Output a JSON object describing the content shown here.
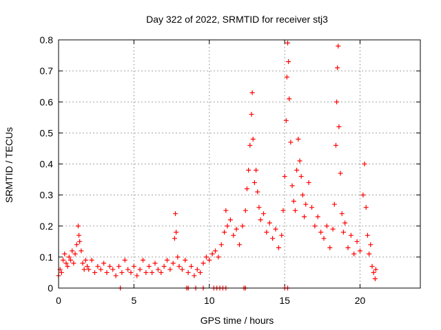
{
  "chart_data": {
    "type": "scatter",
    "title": "Day 322 of 2022, SRMTID for receiver stj3",
    "xlabel": "GPS time / hours",
    "ylabel": "SRMTID / TECUs",
    "xlim": [
      0,
      24
    ],
    "ylim": [
      0,
      0.8
    ],
    "xticks": [
      0,
      5,
      10,
      15,
      20
    ],
    "yticks": [
      0,
      0.1,
      0.2,
      0.3,
      0.4,
      0.5,
      0.6,
      0.7,
      0.8
    ],
    "xtick_labels": [
      "0",
      "5",
      "10",
      "15",
      "20"
    ],
    "ytick_labels": [
      "0",
      "0.1",
      "0.2",
      "0.3",
      "0.4",
      "0.5",
      "0.6",
      "0.7",
      "0.8"
    ],
    "grid": true,
    "marker": "+",
    "series_color": "#ff0000",
    "series": [
      {
        "name": "SRMTID",
        "points": [
          [
            0.0,
            0.04
          ],
          [
            0.1,
            0.06
          ],
          [
            0.2,
            0.05
          ],
          [
            0.3,
            0.09
          ],
          [
            0.4,
            0.11
          ],
          [
            0.5,
            0.08
          ],
          [
            0.6,
            0.07
          ],
          [
            0.7,
            0.1
          ],
          [
            0.8,
            0.09
          ],
          [
            0.9,
            0.12
          ],
          [
            1.0,
            0.08
          ],
          [
            1.1,
            0.11
          ],
          [
            1.2,
            0.14
          ],
          [
            1.3,
            0.2
          ],
          [
            1.35,
            0.17
          ],
          [
            1.4,
            0.15
          ],
          [
            1.5,
            0.12
          ],
          [
            1.6,
            0.08
          ],
          [
            1.7,
            0.06
          ],
          [
            1.8,
            0.09
          ],
          [
            1.9,
            0.07
          ],
          [
            2.0,
            0.06
          ],
          [
            2.2,
            0.09
          ],
          [
            2.4,
            0.05
          ],
          [
            2.6,
            0.07
          ],
          [
            2.8,
            0.06
          ],
          [
            3.0,
            0.08
          ],
          [
            3.2,
            0.05
          ],
          [
            3.4,
            0.07
          ],
          [
            3.6,
            0.06
          ],
          [
            3.8,
            0.04
          ],
          [
            4.0,
            0.07
          ],
          [
            4.2,
            0.05
          ],
          [
            4.4,
            0.09
          ],
          [
            4.6,
            0.06
          ],
          [
            4.8,
            0.05
          ],
          [
            5.0,
            0.07
          ],
          [
            5.2,
            0.04
          ],
          [
            5.4,
            0.06
          ],
          [
            5.6,
            0.09
          ],
          [
            5.8,
            0.05
          ],
          [
            6.0,
            0.07
          ],
          [
            6.2,
            0.05
          ],
          [
            6.4,
            0.08
          ],
          [
            6.6,
            0.06
          ],
          [
            6.8,
            0.05
          ],
          [
            7.0,
            0.07
          ],
          [
            7.2,
            0.09
          ],
          [
            7.4,
            0.06
          ],
          [
            7.6,
            0.08
          ],
          [
            7.7,
            0.16
          ],
          [
            7.75,
            0.24
          ],
          [
            7.8,
            0.18
          ],
          [
            7.9,
            0.1
          ],
          [
            8.0,
            0.07
          ],
          [
            8.2,
            0.06
          ],
          [
            8.4,
            0.09
          ],
          [
            8.6,
            0.05
          ],
          [
            8.8,
            0.07
          ],
          [
            9.0,
            0.04
          ],
          [
            9.2,
            0.06
          ],
          [
            9.4,
            0.05
          ],
          [
            9.6,
            0.08
          ],
          [
            9.8,
            0.1
          ],
          [
            10.0,
            0.09
          ],
          [
            10.2,
            0.11
          ],
          [
            10.4,
            0.12
          ],
          [
            10.6,
            0.1
          ],
          [
            10.8,
            0.14
          ],
          [
            11.0,
            0.18
          ],
          [
            11.1,
            0.25
          ],
          [
            11.2,
            0.2
          ],
          [
            11.4,
            0.22
          ],
          [
            11.6,
            0.17
          ],
          [
            11.8,
            0.19
          ],
          [
            12.0,
            0.14
          ],
          [
            12.2,
            0.2
          ],
          [
            12.4,
            0.25
          ],
          [
            12.5,
            0.32
          ],
          [
            12.6,
            0.38
          ],
          [
            12.7,
            0.46
          ],
          [
            12.8,
            0.56
          ],
          [
            12.85,
            0.63
          ],
          [
            12.9,
            0.48
          ],
          [
            13.0,
            0.34
          ],
          [
            13.1,
            0.38
          ],
          [
            13.2,
            0.31
          ],
          [
            13.3,
            0.26
          ],
          [
            13.4,
            0.22
          ],
          [
            13.6,
            0.24
          ],
          [
            13.8,
            0.18
          ],
          [
            14.0,
            0.21
          ],
          [
            14.2,
            0.16
          ],
          [
            14.4,
            0.19
          ],
          [
            14.6,
            0.13
          ],
          [
            14.8,
            0.17
          ],
          [
            14.9,
            0.25
          ],
          [
            15.0,
            0.36
          ],
          [
            15.1,
            0.54
          ],
          [
            15.15,
            0.68
          ],
          [
            15.2,
            0.79
          ],
          [
            15.25,
            0.73
          ],
          [
            15.3,
            0.61
          ],
          [
            15.4,
            0.47
          ],
          [
            15.5,
            0.33
          ],
          [
            15.6,
            0.28
          ],
          [
            15.7,
            0.25
          ],
          [
            15.8,
            0.38
          ],
          [
            15.9,
            0.48
          ],
          [
            16.0,
            0.41
          ],
          [
            16.1,
            0.36
          ],
          [
            16.2,
            0.3
          ],
          [
            16.3,
            0.23
          ],
          [
            16.4,
            0.27
          ],
          [
            16.6,
            0.34
          ],
          [
            16.8,
            0.26
          ],
          [
            17.0,
            0.2
          ],
          [
            17.2,
            0.23
          ],
          [
            17.4,
            0.18
          ],
          [
            17.6,
            0.16
          ],
          [
            17.8,
            0.2
          ],
          [
            18.0,
            0.13
          ],
          [
            18.2,
            0.19
          ],
          [
            18.3,
            0.27
          ],
          [
            18.4,
            0.46
          ],
          [
            18.45,
            0.6
          ],
          [
            18.5,
            0.71
          ],
          [
            18.55,
            0.78
          ],
          [
            18.6,
            0.52
          ],
          [
            18.7,
            0.37
          ],
          [
            18.8,
            0.24
          ],
          [
            18.9,
            0.18
          ],
          [
            19.0,
            0.21
          ],
          [
            19.2,
            0.13
          ],
          [
            19.4,
            0.17
          ],
          [
            19.6,
            0.11
          ],
          [
            19.8,
            0.15
          ],
          [
            20.0,
            0.12
          ],
          [
            20.2,
            0.3
          ],
          [
            20.3,
            0.4
          ],
          [
            20.4,
            0.26
          ],
          [
            20.5,
            0.17
          ],
          [
            20.6,
            0.11
          ],
          [
            20.7,
            0.14
          ],
          [
            20.8,
            0.07
          ],
          [
            20.9,
            0.05
          ],
          [
            21.0,
            0.03
          ],
          [
            21.05,
            0.06
          ],
          [
            8.5,
            0.0
          ],
          [
            8.6,
            0.0
          ],
          [
            9.1,
            0.0
          ],
          [
            9.6,
            0.0
          ],
          [
            10.3,
            0.0
          ],
          [
            10.5,
            0.0
          ],
          [
            10.7,
            0.0
          ],
          [
            10.9,
            0.0
          ],
          [
            11.1,
            0.0
          ],
          [
            12.3,
            0.0
          ],
          [
            12.4,
            0.0
          ],
          [
            15.0,
            0.0
          ],
          [
            15.2,
            0.0
          ],
          [
            4.1,
            0.0
          ]
        ]
      }
    ]
  }
}
